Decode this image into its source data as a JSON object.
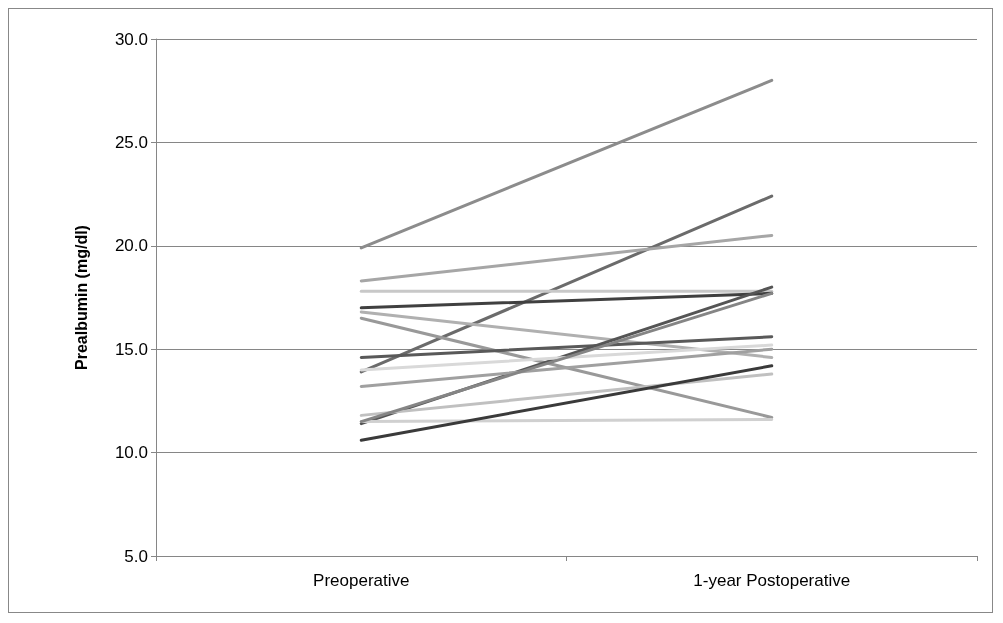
{
  "chart_data": {
    "type": "line",
    "ylabel": "Prealbumin (mg/dl)",
    "categories": [
      "Preoperative",
      "1-year Postoperative"
    ],
    "series": [
      {
        "color": "#8c8c8c",
        "values": [
          19.9,
          28.0
        ]
      },
      {
        "color": "#6b6b6b",
        "values": [
          13.9,
          22.4
        ]
      },
      {
        "color": "#a6a6a6",
        "values": [
          18.3,
          20.5
        ]
      },
      {
        "color": "#c8c8c8",
        "values": [
          17.8,
          17.8
        ]
      },
      {
        "color": "#404040",
        "values": [
          17.0,
          17.7
        ]
      },
      {
        "color": "#b0b0b0",
        "values": [
          16.8,
          14.6
        ]
      },
      {
        "color": "#999999",
        "values": [
          16.5,
          11.7
        ]
      },
      {
        "color": "#595959",
        "values": [
          14.6,
          15.6
        ]
      },
      {
        "color": "#555555",
        "values": [
          11.4,
          18.0
        ]
      },
      {
        "color": "#d9d9d9",
        "values": [
          14.0,
          15.2
        ]
      },
      {
        "color": "#a0a0a0",
        "values": [
          13.2,
          15.0
        ]
      },
      {
        "color": "#c0c0c0",
        "values": [
          11.8,
          13.8
        ]
      },
      {
        "color": "#d0d0d0",
        "values": [
          11.5,
          11.6
        ]
      },
      {
        "color": "#3a3a3a",
        "values": [
          10.6,
          14.2
        ]
      },
      {
        "color": "#858585",
        "values": [
          11.5,
          17.7
        ]
      }
    ],
    "ylim": [
      5,
      30
    ],
    "yticks": [
      {
        "value": 5,
        "label": "5.0"
      },
      {
        "value": 10,
        "label": "10.0"
      },
      {
        "value": 15,
        "label": "15.0"
      },
      {
        "value": 20,
        "label": "20.0"
      },
      {
        "value": 25,
        "label": "25.0"
      },
      {
        "value": 30,
        "label": "30.0"
      }
    ],
    "grid": "y",
    "marker": "none",
    "line_style": "solid"
  }
}
